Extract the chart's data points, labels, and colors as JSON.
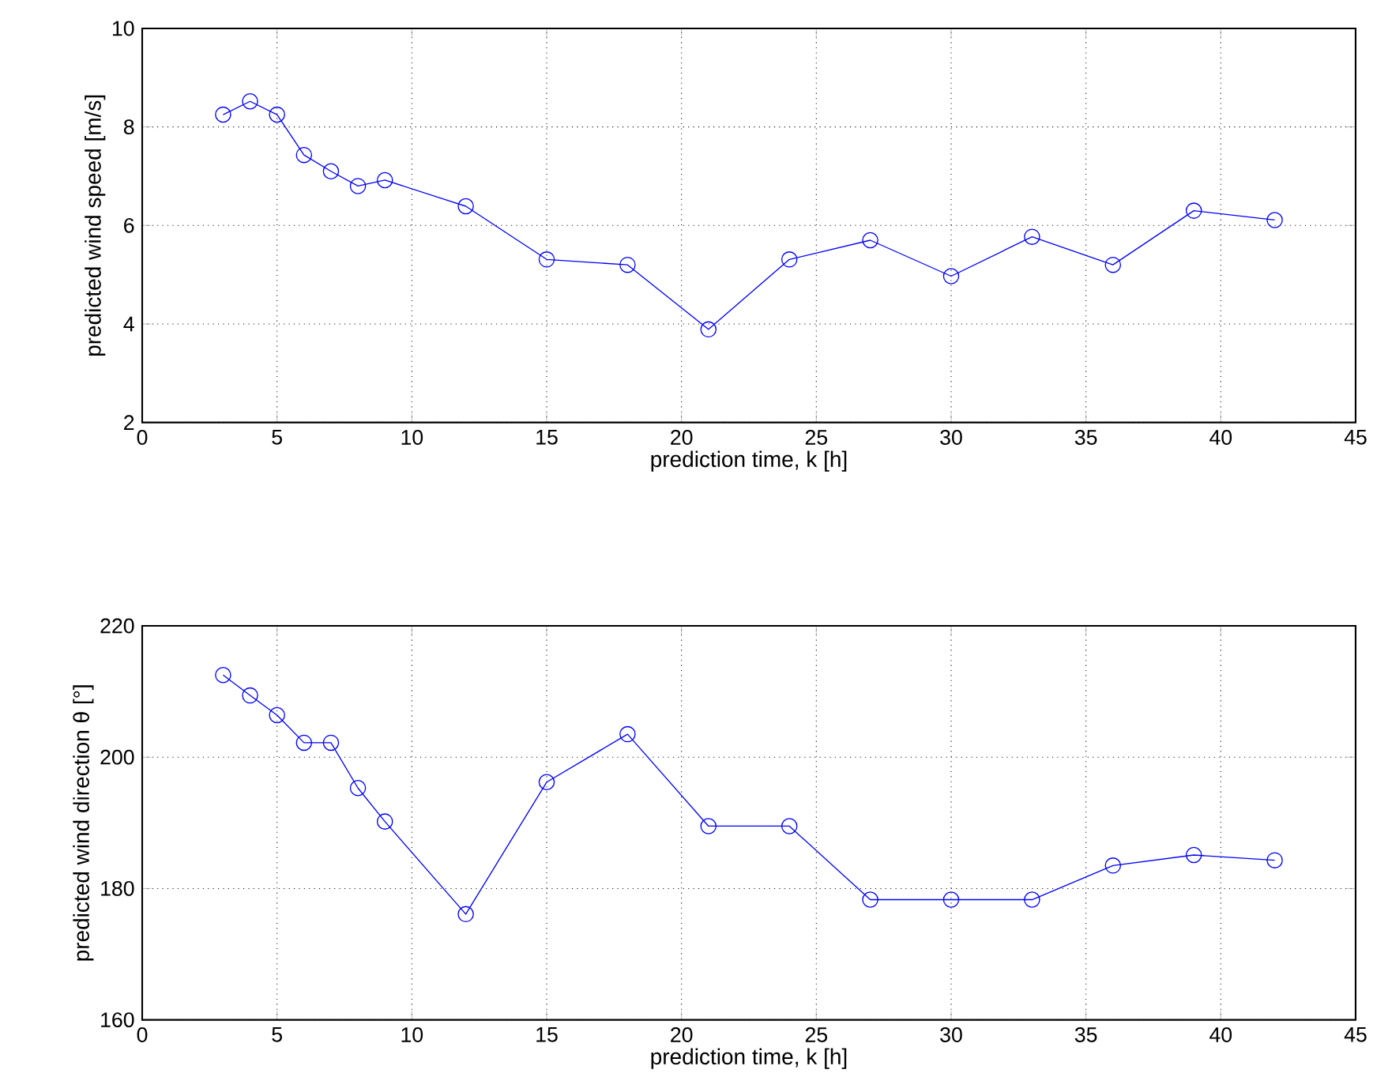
{
  "chart_data": [
    {
      "type": "line",
      "xlabel": "prediction time, k [h]",
      "ylabel": "predicted wind speed [m/s]",
      "x": [
        3,
        4,
        5,
        6,
        7,
        8,
        9,
        12,
        15,
        18,
        21,
        24,
        27,
        30,
        33,
        36,
        39,
        42
      ],
      "series": [
        {
          "color": "#0000ff",
          "values": [
            8.25,
            8.52,
            8.25,
            7.43,
            7.1,
            6.8,
            6.92,
            6.39,
            5.31,
            5.2,
            3.89,
            5.31,
            5.7,
            4.97,
            5.77,
            5.2,
            6.3,
            6.11
          ]
        }
      ],
      "xlim": [
        0,
        45
      ],
      "ylim": [
        2,
        10
      ],
      "xticks": [
        0,
        5,
        10,
        15,
        20,
        25,
        30,
        35,
        40,
        45
      ],
      "yticks": [
        2,
        4,
        6,
        8,
        10
      ],
      "grid": true,
      "marker": "circle",
      "line_style": "solid"
    },
    {
      "type": "line",
      "xlabel": "prediction time, k [h]",
      "ylabel": "predicted wind direction θ [°]",
      "x": [
        3,
        4,
        5,
        6,
        7,
        8,
        9,
        12,
        15,
        18,
        21,
        24,
        27,
        30,
        33,
        36,
        39,
        42
      ],
      "series": [
        {
          "color": "#0000ff",
          "values": [
            212.5,
            209.4,
            206.4,
            202.2,
            202.2,
            195.3,
            190.2,
            176.1,
            196.2,
            203.5,
            189.5,
            189.5,
            178.3,
            178.3,
            178.3,
            183.5,
            185.1,
            184.3
          ]
        }
      ],
      "xlim": [
        0,
        45
      ],
      "ylim": [
        160,
        220
      ],
      "xticks": [
        0,
        5,
        10,
        15,
        20,
        25,
        30,
        35,
        40,
        45
      ],
      "yticks": [
        160,
        180,
        200,
        220
      ],
      "grid": true,
      "marker": "circle",
      "line_style": "solid"
    }
  ]
}
